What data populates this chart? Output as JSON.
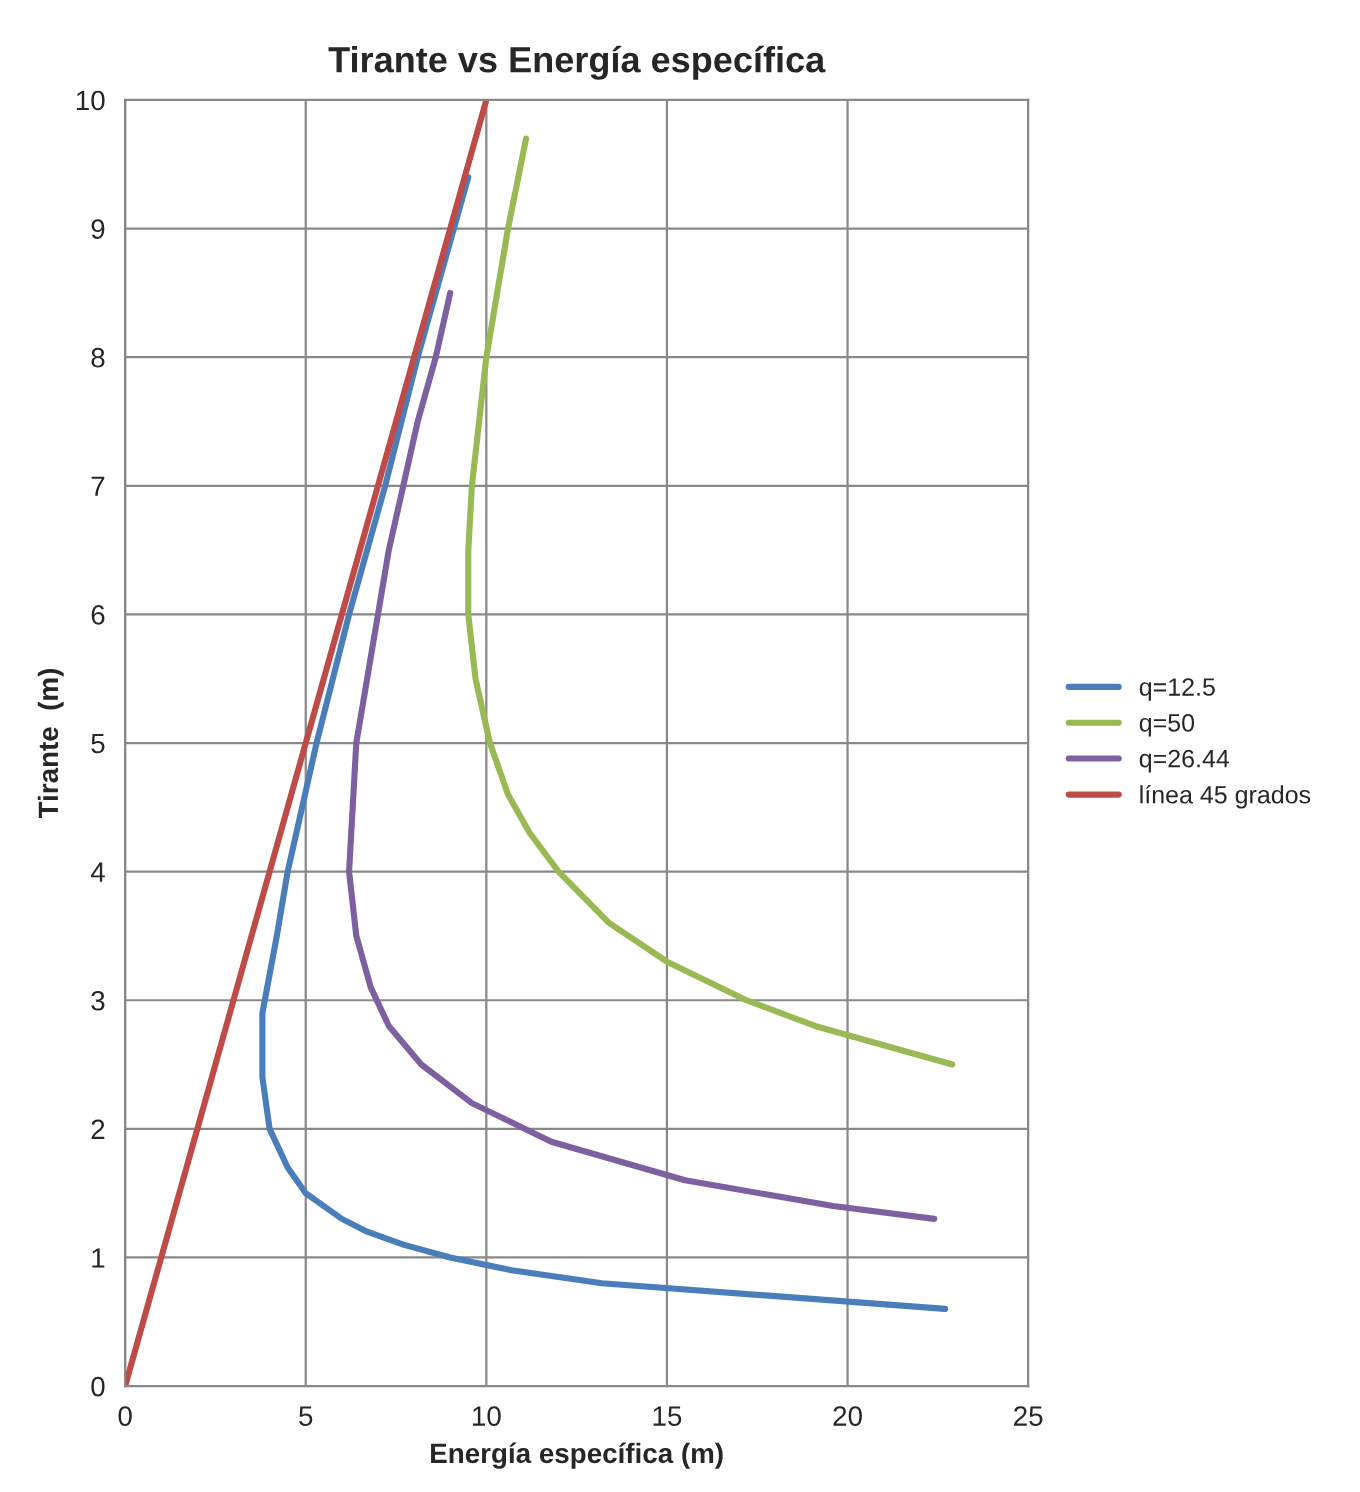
{
  "chart_data": {
    "type": "line",
    "title": "Tirante vs Energía específica",
    "xlabel": "Energía específica (m)",
    "ylabel": "Tirante  (m)",
    "xlim": [
      0,
      25
    ],
    "xticks": [
      0,
      5,
      10,
      15,
      20,
      25
    ],
    "ylim": [
      0,
      10
    ],
    "yticks": [
      0,
      1,
      2,
      3,
      4,
      5,
      6,
      7,
      8,
      9,
      10
    ],
    "grid": true,
    "legend": "right",
    "series": [
      {
        "name": "q=12.5",
        "color": "#4a7ebb",
        "x": [
          22.7,
          13.2,
          10.7,
          9.0,
          7.7,
          6.7,
          6.0,
          5.0,
          4.5,
          4.0,
          3.8,
          3.8,
          4.2,
          4.5,
          5.3,
          6.2,
          7.2,
          8.1,
          9.1,
          9.5
        ],
        "values": [
          0.6,
          0.8,
          0.9,
          1.0,
          1.1,
          1.2,
          1.3,
          1.5,
          1.7,
          2.0,
          2.4,
          2.9,
          3.5,
          4.0,
          5.0,
          6.0,
          7.0,
          8.0,
          9.0,
          9.4
        ]
      },
      {
        "name": "q=50",
        "color": "#98b954",
        "x": [
          22.9,
          19.1,
          17.2,
          15.0,
          13.4,
          12.0,
          11.2,
          10.6,
          10.1,
          9.7,
          9.5,
          9.5,
          9.6,
          9.8,
          10.0,
          10.3,
          10.6,
          11.1
        ],
        "values": [
          2.5,
          2.8,
          3.0,
          3.3,
          3.6,
          4.0,
          4.3,
          4.6,
          5.0,
          5.5,
          6.0,
          6.5,
          7.0,
          7.5,
          8.0,
          8.5,
          9.0,
          9.7
        ]
      },
      {
        "name": "q=26.44",
        "color": "#7d60a0",
        "x": [
          22.4,
          19.6,
          15.5,
          11.8,
          9.6,
          8.2,
          7.3,
          6.8,
          6.4,
          6.2,
          6.3,
          6.4,
          6.7,
          7.0,
          7.3,
          7.7,
          8.1,
          8.6,
          9.0
        ],
        "values": [
          1.3,
          1.4,
          1.6,
          1.9,
          2.2,
          2.5,
          2.8,
          3.1,
          3.5,
          4.0,
          4.5,
          5.0,
          5.5,
          6.0,
          6.5,
          7.0,
          7.5,
          8.0,
          8.5
        ]
      },
      {
        "name": "línea 45 grados",
        "color": "#be4b48",
        "x": [
          0,
          10
        ],
        "values": [
          0,
          10
        ]
      }
    ]
  }
}
